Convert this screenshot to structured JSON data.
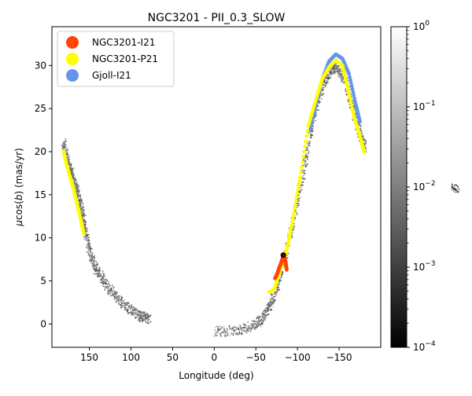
{
  "chart_data": {
    "type": "scatter",
    "title": "NGC3201 - PII_0.3_SLOW",
    "xlabel": "Longitude (deg)",
    "ylabel_prefix": "μ",
    "ylabel_mid": "cos(",
    "ylabel_b": "b",
    "ylabel_suffix": ") (mas/yr)",
    "xlim": [
      195,
      -200
    ],
    "ylim": [
      -2.7,
      34.5
    ],
    "xticks": [
      {
        "value": 150,
        "label": "150"
      },
      {
        "value": 100,
        "label": "100"
      },
      {
        "value": 50,
        "label": "50"
      },
      {
        "value": 0,
        "label": "0"
      },
      {
        "value": -50,
        "label": "−50"
      },
      {
        "value": -100,
        "label": "−100"
      },
      {
        "value": -150,
        "label": "−150"
      }
    ],
    "yticks": [
      {
        "value": 0,
        "label": "0"
      },
      {
        "value": 5,
        "label": "5"
      },
      {
        "value": 10,
        "label": "10"
      },
      {
        "value": 15,
        "label": "15"
      },
      {
        "value": 20,
        "label": "20"
      },
      {
        "value": 25,
        "label": "25"
      },
      {
        "value": 30,
        "label": "30"
      }
    ],
    "legend_position": "top-left",
    "legend": [
      {
        "name": "NGC3201-I21",
        "color": "#ff4500"
      },
      {
        "name": "NGC3201-P21",
        "color": "#ffff00"
      },
      {
        "name": "Gjoll-I21",
        "color": "#6495ed"
      }
    ],
    "colorbar": {
      "label": "𝓓",
      "scale": "log",
      "range": [
        0.0001,
        1
      ],
      "colormap": "gray",
      "ticks": [
        {
          "base": "10",
          "exp": "0",
          "value": 1
        },
        {
          "base": "10",
          "exp": "−1",
          "value": 0.1
        },
        {
          "base": "10",
          "exp": "−2",
          "value": 0.01
        },
        {
          "base": "10",
          "exp": "−3",
          "value": 0.001
        },
        {
          "base": "10",
          "exp": "−4",
          "value": 0.0001
        }
      ]
    },
    "series": [
      {
        "name": "stream-density-left-arm",
        "kind": "density",
        "color": "#6e6e6e",
        "points": [
          [
            181,
            21
          ],
          [
            176,
            19
          ],
          [
            170,
            17
          ],
          [
            165,
            15.5
          ],
          [
            160,
            13.5
          ],
          [
            156,
            11.5
          ],
          [
            150,
            8.5
          ],
          [
            142,
            6.5
          ],
          [
            130,
            4.5
          ],
          [
            115,
            2.8
          ],
          [
            100,
            1.6
          ],
          [
            88,
            0.9
          ],
          [
            78,
            0.6
          ]
        ]
      },
      {
        "name": "stream-density-right-arm",
        "kind": "density",
        "color": "#5a5a5a",
        "points": [
          [
            0,
            -0.9
          ],
          [
            -30,
            -0.7
          ],
          [
            -50,
            -0.1
          ],
          [
            -62,
            1.2
          ],
          [
            -72,
            3.2
          ],
          [
            -82,
            6.5
          ],
          [
            -95,
            12
          ],
          [
            -108,
            18
          ],
          [
            -118,
            23.5
          ],
          [
            -130,
            27.5
          ],
          [
            -140,
            29.5
          ],
          [
            -148,
            29.8
          ],
          [
            -158,
            28
          ],
          [
            -168,
            24.5
          ],
          [
            -175,
            22
          ],
          [
            -181,
            20.5
          ]
        ]
      },
      {
        "name": "Gjoll-I21",
        "kind": "obs",
        "color": "#6495ed",
        "points": [
          [
            -115,
            22.5
          ],
          [
            -122,
            25.5
          ],
          [
            -130,
            28.5
          ],
          [
            -138,
            30.5
          ],
          [
            -146,
            31.3
          ],
          [
            -154,
            30.8
          ],
          [
            -162,
            29
          ],
          [
            -170,
            25.5
          ],
          [
            -175,
            23.5
          ]
        ]
      },
      {
        "name": "NGC3201-P21",
        "kind": "obs",
        "color": "#ffff00",
        "points": [
          [
            -66,
            3.7
          ],
          [
            -72,
            4
          ],
          [
            -80,
            6.5
          ],
          [
            -88,
            9
          ],
          [
            -95,
            12.5
          ],
          [
            -103,
            17
          ],
          [
            -113,
            23
          ],
          [
            -122,
            26
          ],
          [
            -130,
            28.5
          ],
          [
            -138,
            29.8
          ],
          [
            -146,
            30.6
          ],
          [
            -154,
            30
          ],
          [
            -160,
            27.5
          ],
          [
            -168,
            24
          ],
          [
            -176,
            21.5
          ],
          [
            -180,
            20
          ]
        ]
      },
      {
        "name": "NGC3201-P21-left",
        "kind": "obs",
        "color": "#ffff00",
        "points": [
          [
            181,
            20
          ],
          [
            176,
            18
          ],
          [
            170,
            16
          ],
          [
            165,
            14
          ],
          [
            160,
            12
          ],
          [
            157,
            10.5
          ]
        ]
      },
      {
        "name": "NGC3201-I21",
        "kind": "obs",
        "color": "#ff4500",
        "points": [
          [
            -73,
            5.3
          ],
          [
            -76,
            5.9
          ],
          [
            -78,
            6.5
          ],
          [
            -80,
            7
          ],
          [
            -82,
            7.6
          ],
          [
            -83,
            7.9
          ],
          [
            -85,
            7.6
          ],
          [
            -86,
            7
          ],
          [
            -87,
            6.3
          ]
        ]
      }
    ],
    "cluster_marker": {
      "lon": -83,
      "pm": 8
    }
  }
}
